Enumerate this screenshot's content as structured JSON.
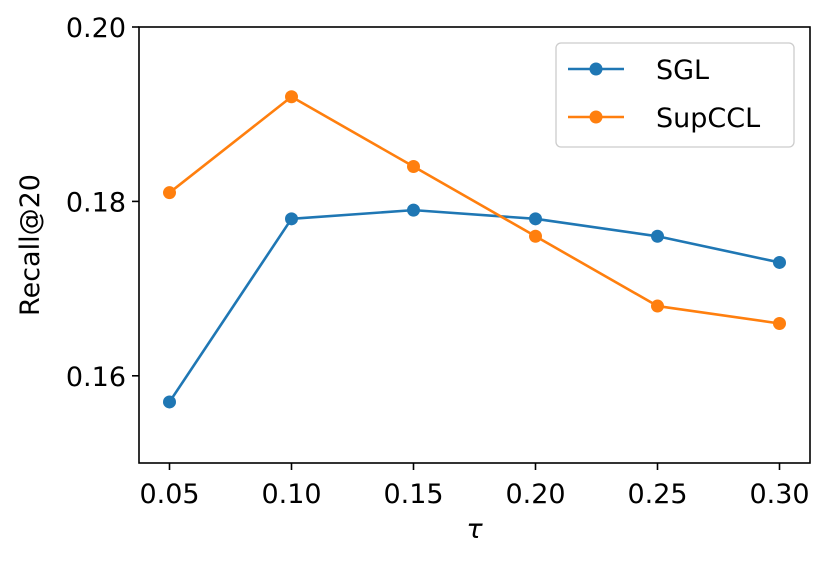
{
  "chart_data": {
    "type": "line",
    "x": [
      0.05,
      0.1,
      0.15,
      0.2,
      0.25,
      0.3
    ],
    "x_tick_labels": [
      "0.05",
      "0.10",
      "0.15",
      "0.20",
      "0.25",
      "0.30"
    ],
    "y_ticks": [
      0.16,
      0.18,
      0.2
    ],
    "y_tick_labels": [
      "0.16",
      "0.18",
      "0.20"
    ],
    "xlim": [
      0.0375,
      0.3125
    ],
    "ylim": [
      0.15,
      0.2
    ],
    "xlabel": "τ",
    "ylabel": "Recall@20",
    "legend_position": "top-right",
    "grid": false,
    "series": [
      {
        "name": "SGL",
        "color": "#1f77b4",
        "values": [
          0.157,
          0.178,
          0.179,
          0.178,
          0.176,
          0.173
        ]
      },
      {
        "name": "SupCCL",
        "color": "#ff7f0e",
        "values": [
          0.181,
          0.192,
          0.184,
          0.176,
          0.168,
          0.166
        ]
      }
    ]
  }
}
